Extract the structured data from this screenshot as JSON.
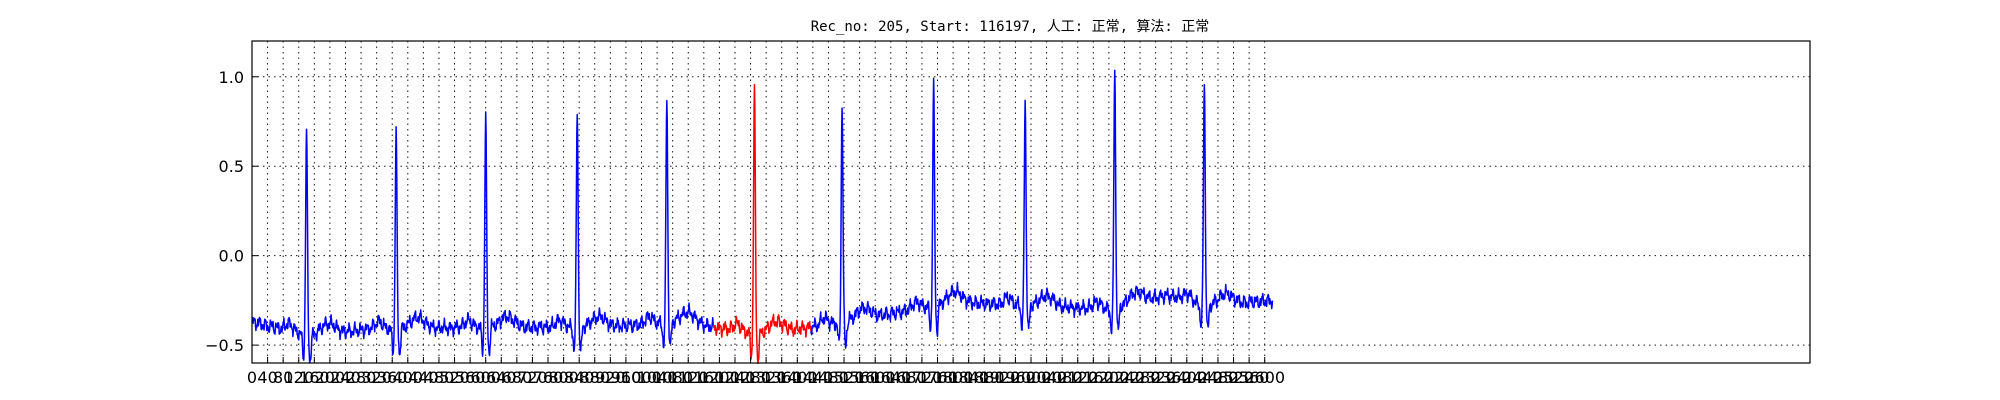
{
  "chart_data": {
    "type": "line",
    "title": "Rec_no: 205, Start: 116197, 人工: 正常, 算法: 正常",
    "xlabel": "",
    "ylabel": "",
    "xlim": [
      0,
      4000
    ],
    "ylim": [
      -0.6,
      1.2
    ],
    "grid": true,
    "legend": "none",
    "yticks": [
      -0.5,
      0.0,
      0.5,
      1.0
    ],
    "ytick_labels": [
      "−0.5",
      "0.0",
      "0.5",
      "1.0"
    ],
    "xtick_labels": [
      "0",
      "40",
      "80",
      "120",
      "160",
      "200",
      "240",
      "280",
      "320",
      "360",
      "400",
      "440",
      "480",
      "520",
      "560",
      "600",
      "640",
      "680",
      "720",
      "760",
      "800",
      "840",
      "880",
      "920",
      "960",
      "1000",
      "1040",
      "1080",
      "1120",
      "1160",
      "1200",
      "1240",
      "1280",
      "1320",
      "1360",
      "1400",
      "1440",
      "1480",
      "1520",
      "1560",
      "1600",
      "1640",
      "1680",
      "1720",
      "1760",
      "1800",
      "1840",
      "1880",
      "1920",
      "1960",
      "2000",
      "2040",
      "2080",
      "2120",
      "2160",
      "2200",
      "2240",
      "2280",
      "2320",
      "2360",
      "2400",
      "2440",
      "2480",
      "2520",
      "2560",
      "2600"
    ],
    "signal": {
      "x_end": 2620,
      "baseline": [
        [
          0,
          -0.37
        ],
        [
          150,
          -0.45
        ],
        [
          300,
          -0.41
        ],
        [
          600,
          -0.4
        ],
        [
          900,
          -0.4
        ],
        [
          1100,
          -0.37
        ],
        [
          1300,
          -0.44
        ],
        [
          1500,
          -0.38
        ],
        [
          1700,
          -0.3
        ],
        [
          1800,
          -0.26
        ],
        [
          2000,
          -0.28
        ],
        [
          2200,
          -0.3
        ],
        [
          2350,
          -0.22
        ],
        [
          2450,
          -0.28
        ],
        [
          2620,
          -0.25
        ]
      ],
      "qrs": [
        {
          "x": 140,
          "peak": 0.7
        },
        {
          "x": 370,
          "peak": 0.69
        },
        {
          "x": 600,
          "peak": 0.77
        },
        {
          "x": 835,
          "peak": 0.8
        },
        {
          "x": 1065,
          "peak": 0.88
        },
        {
          "x": 1290,
          "peak": 0.93
        },
        {
          "x": 1515,
          "peak": 0.85
        },
        {
          "x": 1750,
          "peak": 0.95
        },
        {
          "x": 1985,
          "peak": 0.86
        },
        {
          "x": 2215,
          "peak": 1.04
        },
        {
          "x": 2445,
          "peak": 0.97
        }
      ]
    },
    "series": [
      {
        "color": "#0000ff",
        "x_range": [
          0,
          1185
        ]
      },
      {
        "color": "#ff0000",
        "x_range": [
          1185,
          1435
        ]
      },
      {
        "color": "#0000ff",
        "x_range": [
          1435,
          2620
        ]
      }
    ]
  }
}
